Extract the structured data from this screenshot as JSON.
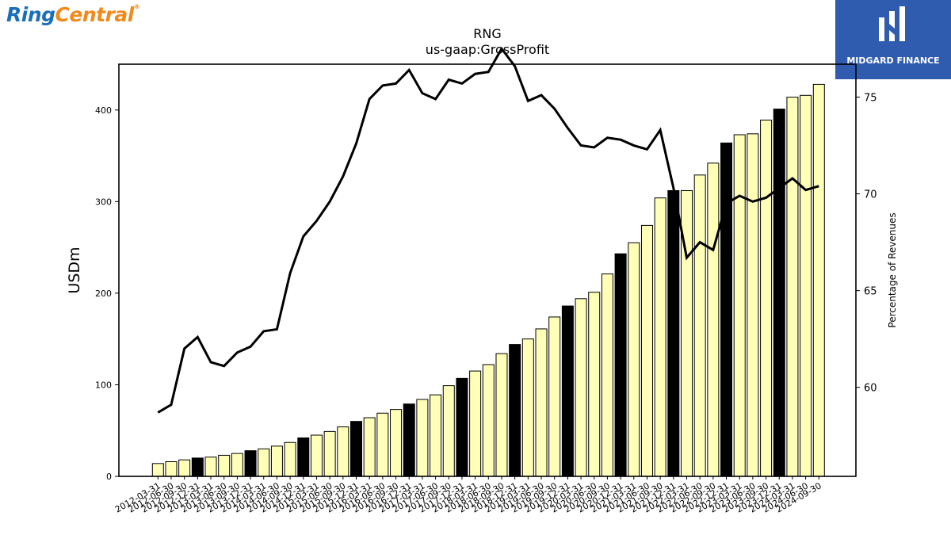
{
  "logos": {
    "left_part1": "Ring",
    "left_part2": "Central",
    "left_reg": "®",
    "right": "MIDGARD FINANCE"
  },
  "chart_data": {
    "type": "bar",
    "title": "RNG",
    "subtitle": "us-gaap:GrossProfit",
    "ylabel": "USDm",
    "y2label": "Percentage of Revenues",
    "ylim": [
      0,
      450
    ],
    "y2lim": [
      55.4,
      76.7
    ],
    "yticks": [
      0,
      100,
      200,
      300,
      400
    ],
    "y2ticks": [
      60,
      65,
      70,
      75
    ],
    "colors": {
      "bar": "#ffffb8",
      "bar_highlight": "#000000",
      "line": "#000000"
    },
    "categories": [
      "2012-03-31",
      "2012-06-30",
      "2012-09-30",
      "2012-12-31",
      "2013-03-31",
      "2013-06-30",
      "2013-09-30",
      "2013-12-31",
      "2014-03-31",
      "2014-06-30",
      "2014-09-30",
      "2014-12-31",
      "2015-03-31",
      "2015-06-30",
      "2015-09-30",
      "2015-12-31",
      "2016-03-31",
      "2016-06-30",
      "2016-09-30",
      "2016-12-31",
      "2017-03-31",
      "2017-06-30",
      "2017-09-30",
      "2017-12-31",
      "2018-03-31",
      "2018-06-30",
      "2018-09-30",
      "2018-12-31",
      "2019-03-31",
      "2019-06-30",
      "2019-09-30",
      "2019-12-31",
      "2020-03-31",
      "2020-06-30",
      "2020-09-30",
      "2020-12-31",
      "2021-03-31",
      "2021-06-30",
      "2021-09-30",
      "2021-12-31",
      "2022-03-31",
      "2022-06-30",
      "2022-09-30",
      "2022-12-31",
      "2023-03-31",
      "2023-06-30",
      "2023-09-30",
      "2023-12-31",
      "2024-03-31",
      "2024-06-30",
      "2024-09-30"
    ],
    "highlighted": [
      false,
      false,
      false,
      true,
      false,
      false,
      false,
      true,
      false,
      false,
      false,
      true,
      false,
      false,
      false,
      true,
      false,
      false,
      false,
      true,
      false,
      false,
      false,
      true,
      false,
      false,
      false,
      true,
      false,
      false,
      false,
      true,
      false,
      false,
      false,
      true,
      false,
      false,
      false,
      true,
      false,
      false,
      false,
      true,
      false,
      false,
      false,
      true,
      false,
      false,
      false
    ],
    "series": [
      {
        "name": "Gross Profit",
        "type": "bar",
        "values": [
          14,
          16,
          18,
          20,
          21,
          23,
          25,
          28,
          30,
          33,
          37,
          42,
          45,
          49,
          54,
          60,
          64,
          69,
          73,
          79,
          84,
          89,
          99,
          107,
          115,
          122,
          134,
          144,
          150,
          161,
          174,
          186,
          194,
          201,
          221,
          243,
          255,
          274,
          304,
          312,
          312,
          329,
          342,
          364,
          373,
          374,
          389,
          401,
          414,
          416,
          428
        ]
      },
      {
        "name": "Percentage of Revenues",
        "type": "line",
        "axis": "y2",
        "values": [
          58.7,
          59.1,
          62.0,
          62.6,
          61.3,
          61.1,
          61.8,
          62.1,
          62.9,
          63.0,
          65.9,
          67.8,
          68.6,
          69.6,
          70.9,
          72.6,
          74.9,
          75.6,
          75.7,
          76.4,
          75.2,
          74.9,
          75.9,
          75.7,
          76.2,
          76.3,
          77.5,
          76.6,
          74.8,
          75.1,
          74.4,
          73.4,
          72.5,
          72.4,
          72.9,
          72.8,
          72.5,
          72.3,
          73.3,
          70.3,
          66.7,
          67.5,
          67.1,
          69.5,
          69.9,
          69.6,
          69.8,
          70.3,
          70.8,
          70.2,
          70.4
        ]
      }
    ]
  }
}
